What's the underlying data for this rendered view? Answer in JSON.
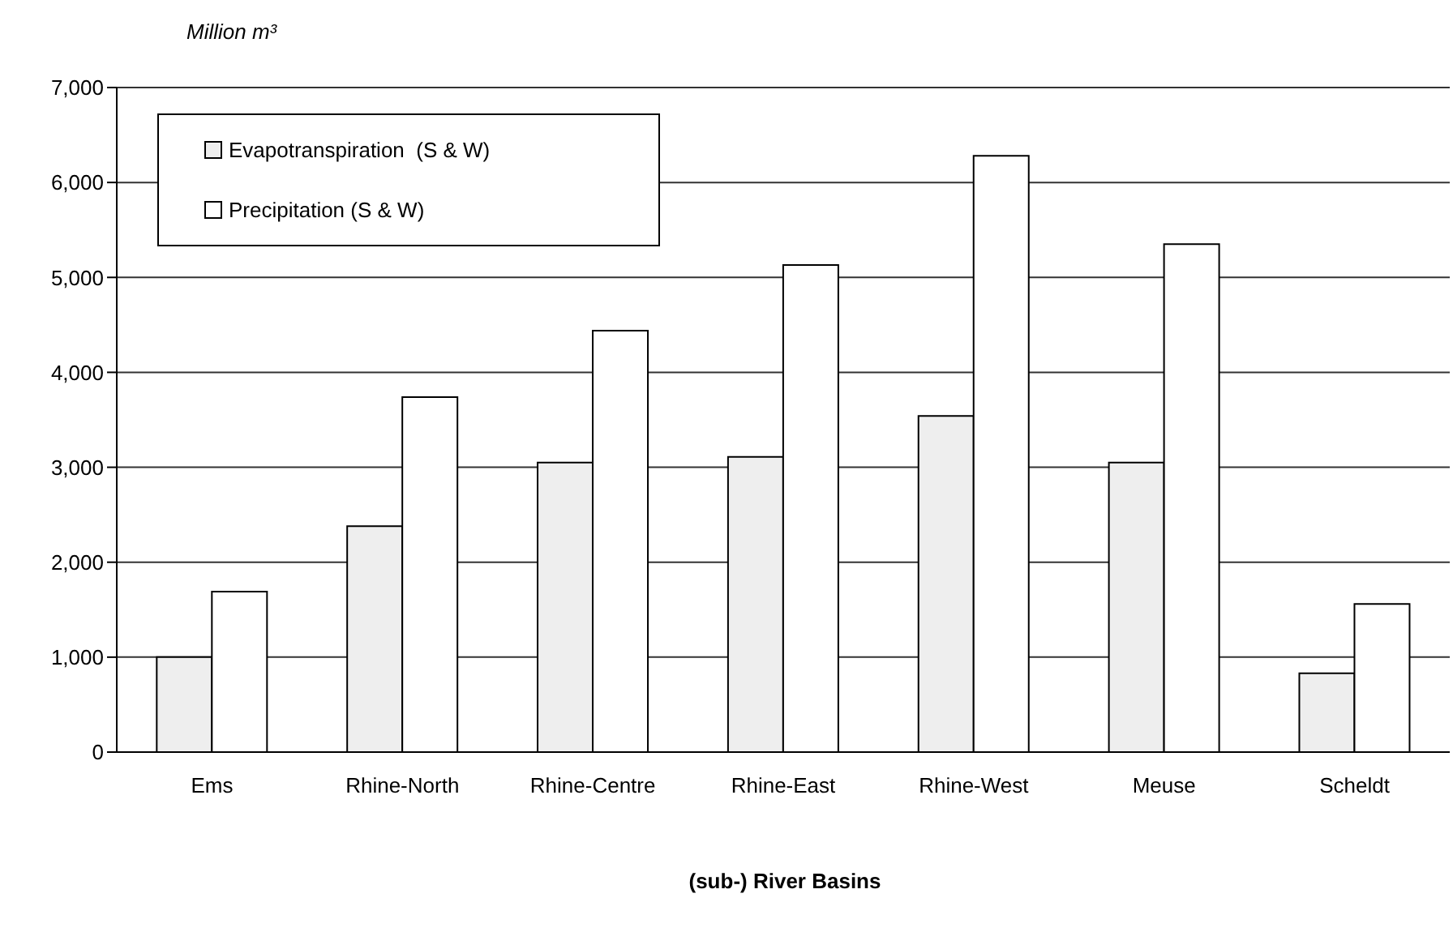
{
  "chart_data": {
    "type": "bar",
    "ylabel": "Million m³",
    "xlabel": "(sub-) River Basins",
    "categories": [
      "Ems",
      "Rhine-North",
      "Rhine-Centre",
      "Rhine-East",
      "Rhine-West",
      "Meuse",
      "Scheldt"
    ],
    "series": [
      {
        "name": "Evapotranspiration  (S & W)",
        "color": "#eeeeee",
        "values": [
          1000,
          2380,
          3050,
          3110,
          3540,
          3050,
          830
        ]
      },
      {
        "name": "Precipitation (S & W)",
        "color": "#ffffff",
        "values": [
          1690,
          3740,
          4440,
          5130,
          6280,
          5350,
          1560
        ]
      }
    ],
    "ylim": [
      0,
      7000
    ],
    "yticks": [
      0,
      {
        "value": 1000,
        "label": "1,000"
      },
      {
        "value": 2000,
        "label": "2,000"
      },
      {
        "value": 3000,
        "label": "3,000"
      },
      {
        "value": 4000,
        "label": "4,000"
      },
      {
        "value": 5000,
        "label": "5,000"
      },
      {
        "value": 6000,
        "label": "6,000"
      },
      {
        "value": 7000,
        "label": "7,000"
      }
    ],
    "grid": "y",
    "legend": "top left"
  }
}
